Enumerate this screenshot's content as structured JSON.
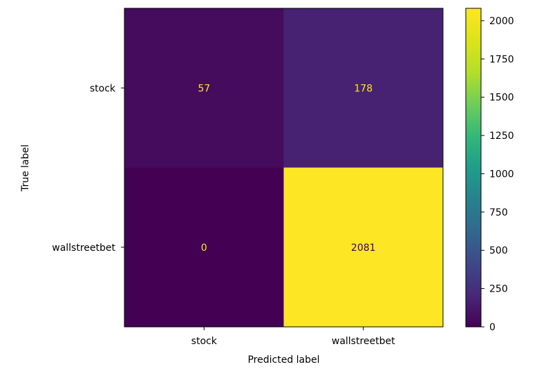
{
  "chart_data": {
    "type": "heatmap",
    "xlabel": "Predicted label",
    "ylabel": "True label",
    "x_categories": [
      "stock",
      "wallstreetbet"
    ],
    "y_categories": [
      "stock",
      "wallstreetbet"
    ],
    "values": [
      [
        57,
        178
      ],
      [
        0,
        2081
      ]
    ],
    "cell_labels": [
      [
        "57",
        "178"
      ],
      [
        "0",
        "2081"
      ]
    ],
    "colormap": "viridis",
    "colorbar": {
      "range": [
        0,
        2081
      ],
      "ticks": [
        0,
        250,
        500,
        750,
        1000,
        1250,
        1500,
        1750,
        2000
      ],
      "tick_labels": [
        "0",
        "250",
        "500",
        "750",
        "1000",
        "1250",
        "1500",
        "1750",
        "2000"
      ]
    },
    "grid": false,
    "cell_label_colors": {
      "on_dark": "#fde725",
      "on_light": "#440154"
    }
  }
}
